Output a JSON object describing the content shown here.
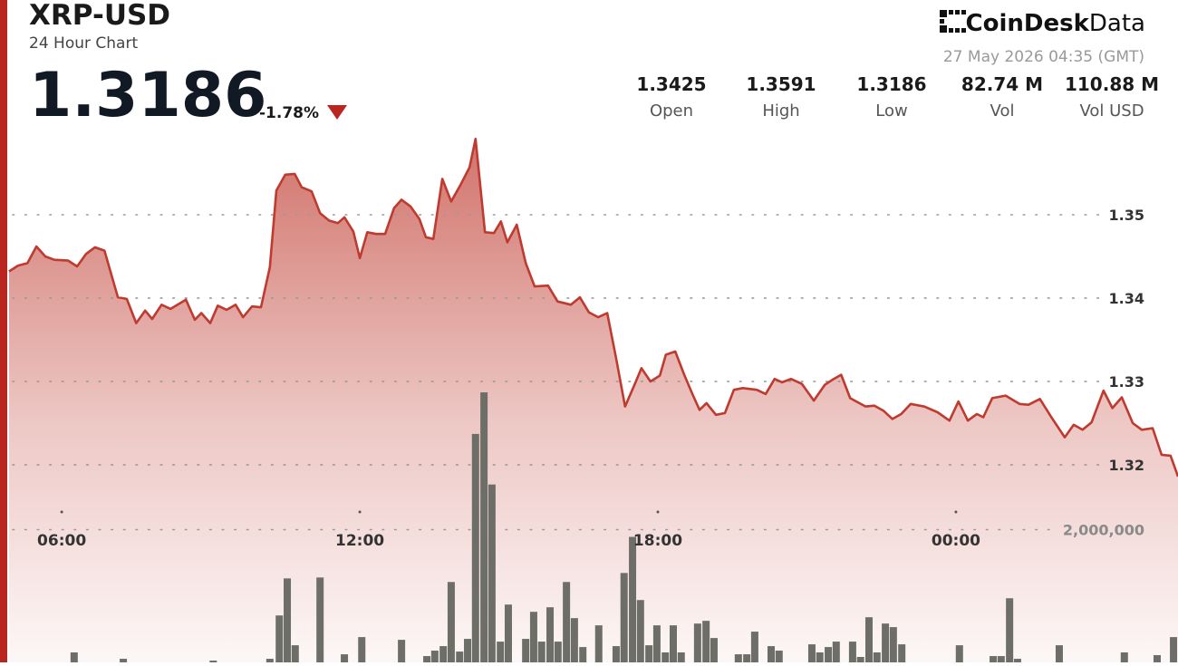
{
  "brand": "CoinDesk",
  "brand_suffix": "Data",
  "timestamp": "27 May 2026 04:35 (GMT)",
  "chart_data": {
    "type": "line",
    "title": "XRP-USD",
    "subtitle": "24 Hour Chart",
    "last_price": "1.3186",
    "change": "-1.78%",
    "stats": [
      {
        "value": "1.3425",
        "label": "Open"
      },
      {
        "value": "1.3591",
        "label": "High"
      },
      {
        "value": "1.3186",
        "label": "Low"
      },
      {
        "value": "82.74 M",
        "label": "Vol"
      },
      {
        "value": "110.88 M",
        "label": "Vol USD"
      }
    ],
    "color": "#bf3a2f",
    "x": [
      4.94,
      5.12,
      5.31,
      5.49,
      5.67,
      5.85,
      6.13,
      6.31,
      6.49,
      6.67,
      6.86,
      7.13,
      7.31,
      7.5,
      7.68,
      7.82,
      8.01,
      8.19,
      8.5,
      8.68,
      8.81,
      8.99,
      9.14,
      9.32,
      9.5,
      9.65,
      9.83,
      10.01,
      10.19,
      10.32,
      10.5,
      10.69,
      10.83,
      11.03,
      11.2,
      11.38,
      11.56,
      11.69,
      11.87,
      12.0,
      12.15,
      12.33,
      12.51,
      12.69,
      12.84,
      13.02,
      13.2,
      13.33,
      13.48,
      13.66,
      13.84,
      14.02,
      14.21,
      14.33,
      14.52,
      14.7,
      14.84,
      14.97,
      15.16,
      15.34,
      15.52,
      15.79,
      15.98,
      16.25,
      16.43,
      16.61,
      16.8,
      16.98,
      17.16,
      17.34,
      17.53,
      17.67,
      17.85,
      18.04,
      18.16,
      18.35,
      18.53,
      18.71,
      18.84,
      18.98,
      19.17,
      19.35,
      19.53,
      19.71,
      19.99,
      20.17,
      20.35,
      20.5,
      20.68,
      20.9,
      21.14,
      21.36,
      21.54,
      21.69,
      21.87,
      22.18,
      22.36,
      22.54,
      22.72,
      22.9,
      23.09,
      23.36,
      23.63,
      23.87,
      24.05,
      24.24,
      24.42,
      24.55,
      24.73,
      25.0,
      25.28,
      25.46,
      25.69,
      25.91,
      26.19,
      26.37,
      26.55,
      26.73,
      26.97,
      27.15,
      27.34,
      27.56,
      27.74,
      27.96,
      28.14,
      28.32,
      28.47
    ],
    "values": [
      1.3432,
      1.3439,
      1.3442,
      1.3462,
      1.345,
      1.3446,
      1.3445,
      1.3438,
      1.3453,
      1.3461,
      1.3457,
      1.3401,
      1.3399,
      1.337,
      1.3385,
      1.3375,
      1.3392,
      1.3387,
      1.3398,
      1.3374,
      1.3382,
      1.337,
      1.3391,
      1.3386,
      1.3392,
      1.3377,
      1.339,
      1.3389,
      1.3437,
      1.3529,
      1.3548,
      1.3549,
      1.3533,
      1.3528,
      1.3502,
      1.3493,
      1.349,
      1.3497,
      1.348,
      1.3448,
      1.3479,
      1.3477,
      1.3477,
      1.3508,
      1.3518,
      1.351,
      1.3495,
      1.3473,
      1.3471,
      1.3543,
      1.3516,
      1.3535,
      1.3557,
      1.3591,
      1.3479,
      1.3478,
      1.3492,
      1.3467,
      1.3488,
      1.3442,
      1.3414,
      1.3415,
      1.3396,
      1.3392,
      1.3401,
      1.3383,
      1.3377,
      1.3382,
      1.3328,
      1.327,
      1.3296,
      1.3316,
      1.33,
      1.3307,
      1.3332,
      1.3336,
      1.3308,
      1.3283,
      1.3266,
      1.3274,
      1.326,
      1.3262,
      1.329,
      1.3292,
      1.329,
      1.3285,
      1.3303,
      1.3299,
      1.3303,
      1.3297,
      1.3277,
      1.3296,
      1.3303,
      1.3308,
      1.328,
      1.327,
      1.3271,
      1.3265,
      1.3255,
      1.3261,
      1.3273,
      1.327,
      1.3263,
      1.3253,
      1.3276,
      1.3253,
      1.3261,
      1.3257,
      1.328,
      1.3283,
      1.3273,
      1.3272,
      1.3279,
      1.3258,
      1.3233,
      1.3248,
      1.3242,
      1.3251,
      1.3289,
      1.3268,
      1.3281,
      1.325,
      1.3242,
      1.3244,
      1.3212,
      1.3211,
      1.3186
    ],
    "xlim": [
      4.94,
      28.47
    ],
    "xticks": [
      {
        "value": 6,
        "label": "06:00"
      },
      {
        "value": 12,
        "label": "12:00"
      },
      {
        "value": 18,
        "label": "18:00"
      },
      {
        "value": 24,
        "label": "00:00"
      }
    ],
    "ylim": [
      1.2963,
      1.36
    ],
    "yticks": [
      1.32,
      1.33,
      1.34,
      1.35
    ],
    "grid": true,
    "volume": {
      "type": "bar",
      "color": "#6e6e68",
      "x": [
        6.25,
        7.24,
        9.05,
        10.19,
        10.38,
        10.54,
        10.7,
        11.2,
        11.69,
        12.04,
        12.84,
        13.35,
        13.51,
        13.68,
        13.84,
        14.01,
        14.17,
        14.33,
        14.5,
        14.66,
        14.83,
        14.99,
        15.34,
        15.5,
        15.66,
        15.83,
        15.99,
        16.16,
        16.32,
        16.49,
        16.81,
        17.16,
        17.32,
        17.49,
        17.65,
        17.82,
        17.98,
        18.15,
        18.31,
        18.47,
        18.8,
        18.97,
        19.13,
        19.62,
        19.79,
        19.95,
        20.28,
        20.44,
        21.1,
        21.26,
        21.43,
        21.59,
        21.92,
        22.08,
        22.25,
        22.41,
        22.58,
        22.74,
        22.91,
        24.07,
        24.75,
        24.91,
        25.08,
        25.24,
        26.08,
        27.39,
        28.05,
        28.38
      ],
      "values": [
        150000,
        54000,
        27000,
        54000,
        707000,
        1265000,
        258000,
        1279000,
        122000,
        381000,
        340000,
        95000,
        177000,
        245000,
        1211000,
        163000,
        354000,
        3442000,
        4068000,
        2680000,
        313000,
        871000,
        354000,
        762000,
        313000,
        830000,
        313000,
        1211000,
        667000,
        231000,
        558000,
        245000,
        1347000,
        1891000,
        939000,
        258000,
        558000,
        150000,
        558000,
        150000,
        585000,
        626000,
        367000,
        122000,
        122000,
        463000,
        245000,
        177000,
        272000,
        150000,
        231000,
        313000,
        313000,
        82000,
        680000,
        150000,
        585000,
        531000,
        272000,
        258000,
        95000,
        95000,
        966000,
        54000,
        258000,
        150000,
        109000,
        381000
      ],
      "ylim": [
        0,
        8000000
      ],
      "yticks": [
        {
          "value": 2000000,
          "label": "2,000,000"
        }
      ]
    }
  }
}
